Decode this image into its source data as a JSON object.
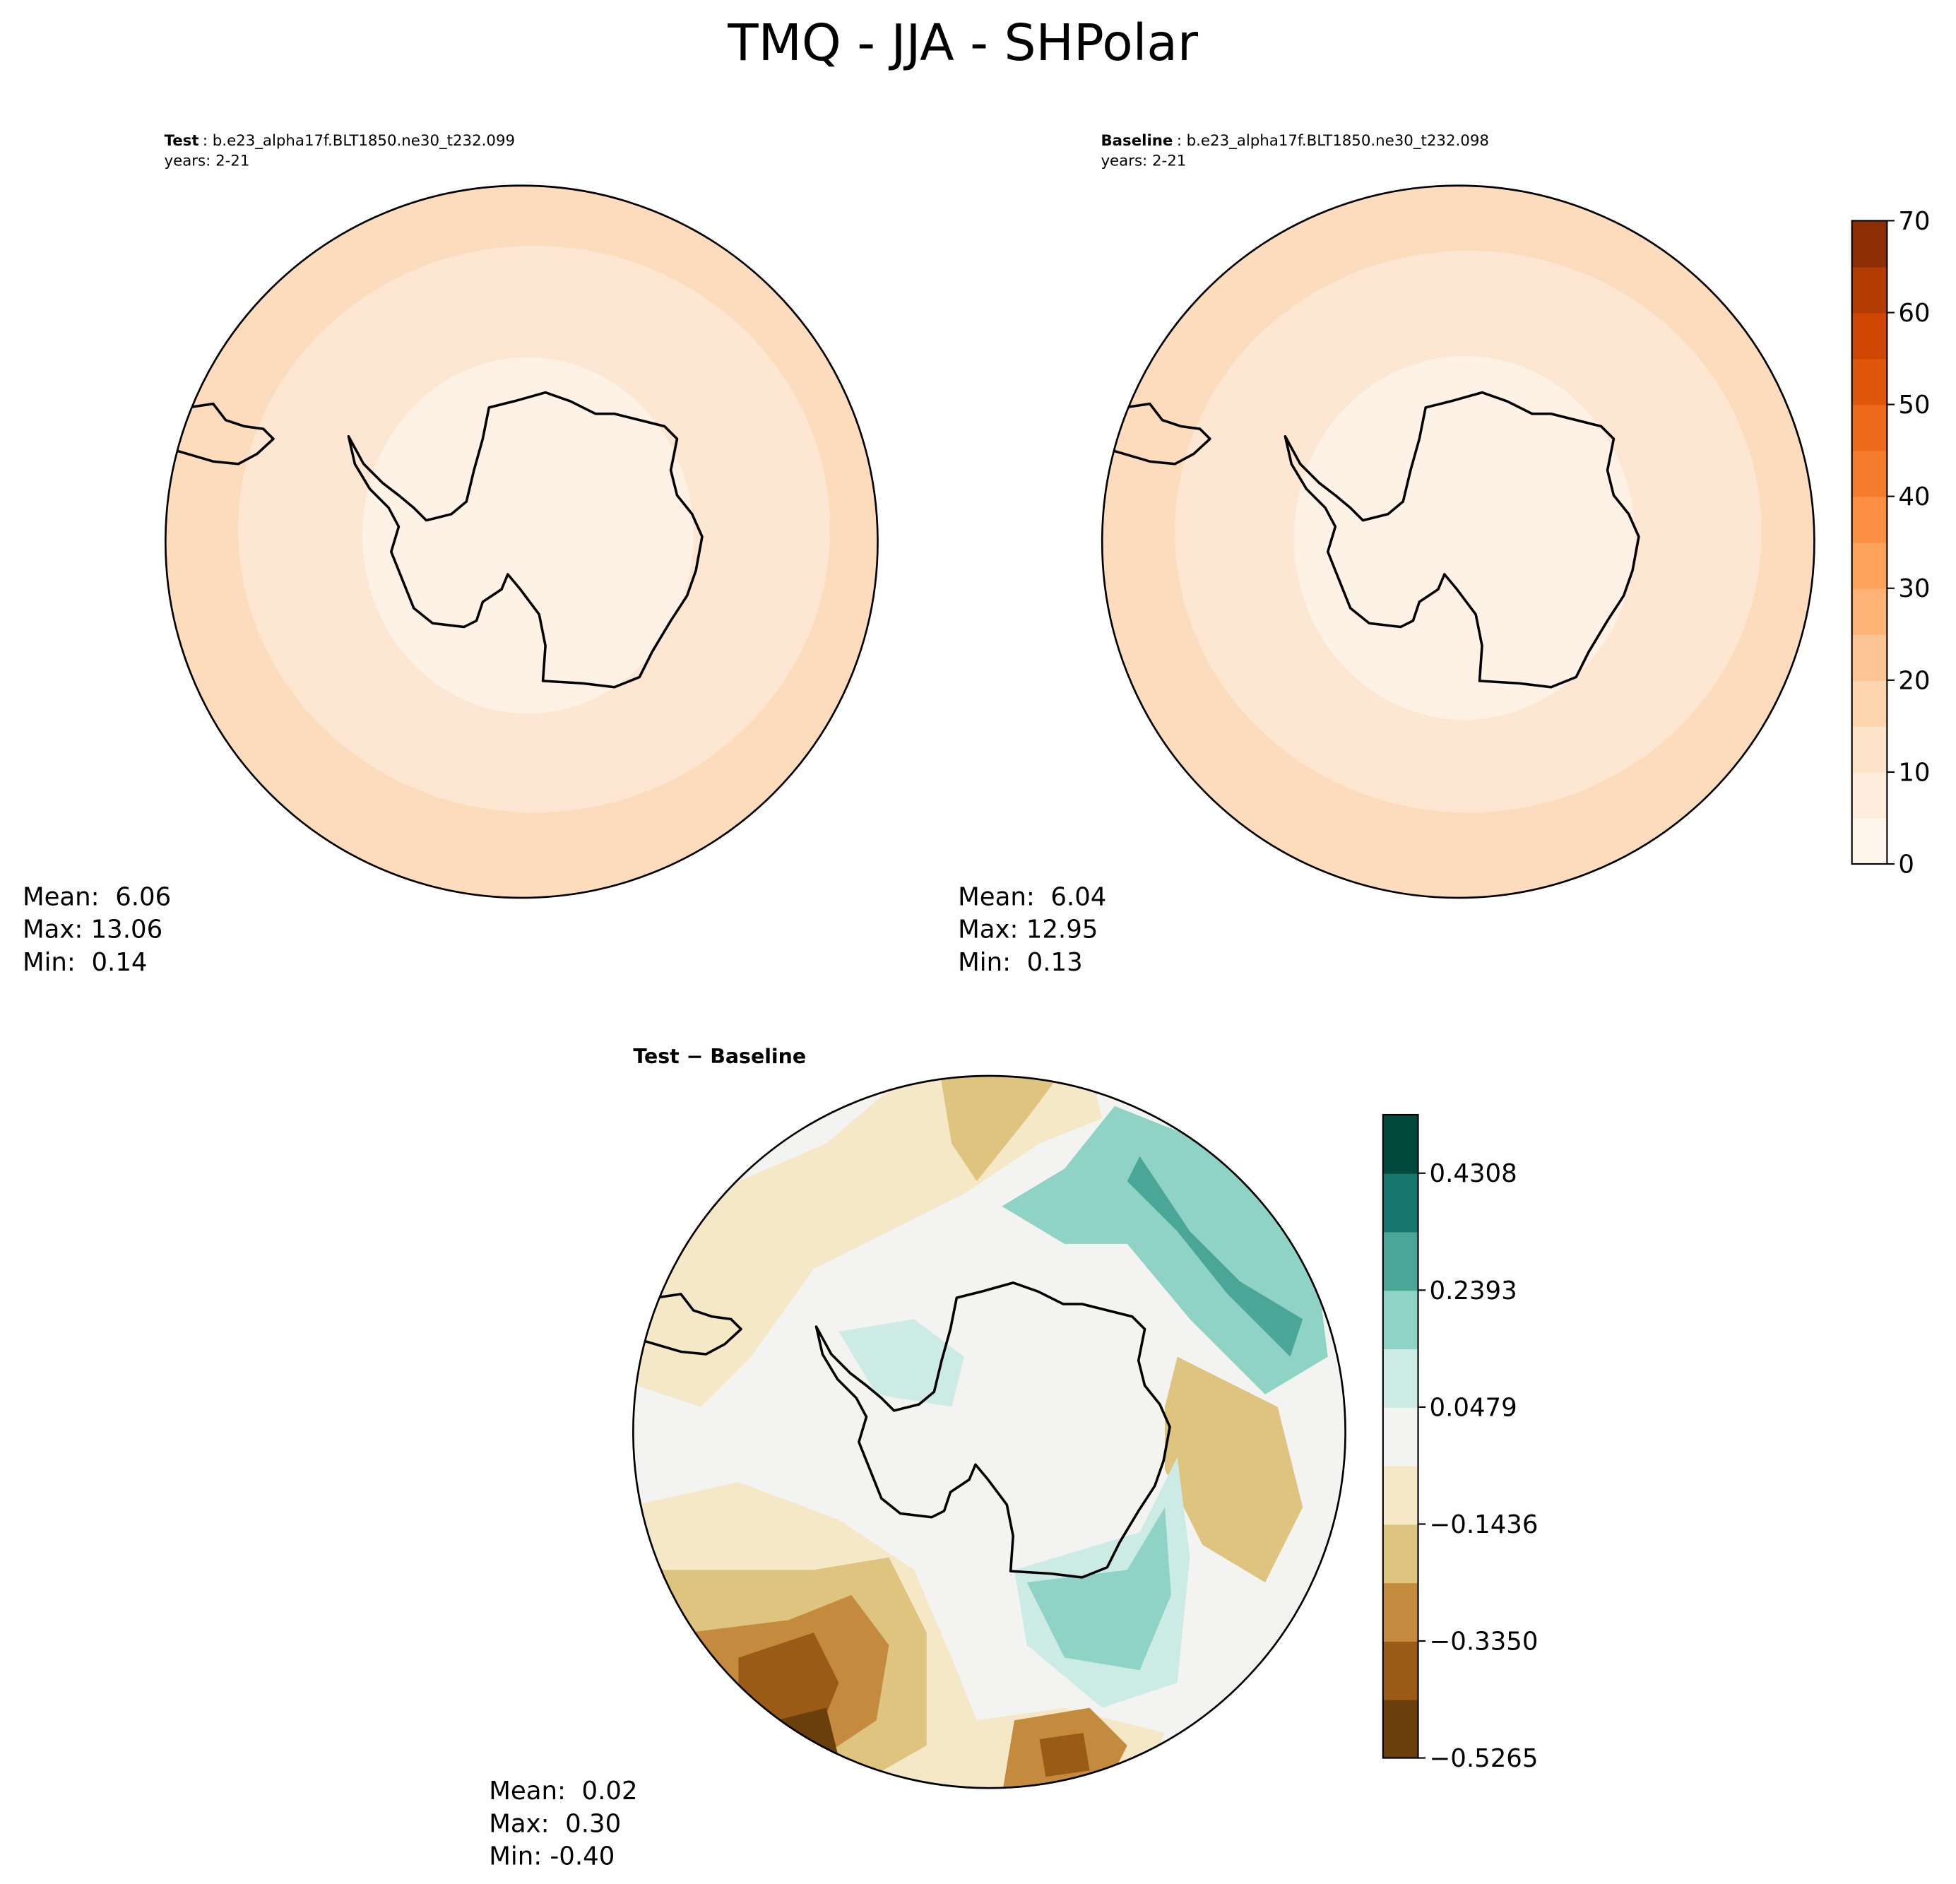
{
  "title": "TMQ - JJA - SHPolar",
  "chart_data": [
    {
      "type": "map",
      "title_bold": "Test",
      "title": ": b.e23_alpha17f.BLT1850.ne30_t232.099",
      "subtitle": "years: 2-21",
      "stats": [
        "Mean:  6.06",
        "Max: 13.06",
        "Min:  0.14"
      ]
    },
    {
      "type": "map",
      "title_bold": "Baseline",
      "title": ": b.e23_alpha17f.BLT1850.ne30_t232.098",
      "subtitle": "years: 2-21",
      "stats": [
        "Mean:  6.04",
        "Max: 12.95",
        "Min:  0.13"
      ]
    },
    {
      "type": "colorbar",
      "ylim": [
        0,
        70
      ],
      "yticks": [
        0,
        10,
        20,
        30,
        40,
        50,
        60,
        70
      ],
      "colors": [
        "#fff5eb",
        "#feeddc",
        "#fde3c8",
        "#fdd5ae",
        "#fdc593",
        "#fdb375",
        "#fda25b",
        "#fc8f43",
        "#f67c2d",
        "#ec6a1a",
        "#e0570c",
        "#cf4603",
        "#b33c03",
        "#8c2d04"
      ]
    },
    {
      "type": "map",
      "title": "Test − Baseline",
      "stats": [
        "Mean:  0.02",
        "Max:  0.30",
        "Min: -0.40"
      ]
    },
    {
      "type": "colorbar",
      "ylim": [
        -0.5265,
        0.5265
      ],
      "yticks": [
        {
          "value": -0.5265,
          "label": "−0.5265"
        },
        {
          "value": -0.335,
          "label": "−0.3350"
        },
        {
          "value": -0.1436,
          "label": "−0.1436"
        },
        0.0479,
        0.2393,
        0.4308
      ],
      "colors": [
        "#6b3f0c",
        "#9a5b17",
        "#c48b3e",
        "#dfc47f",
        "#f5e8c6",
        "#f3f3f1",
        "#cdebe5",
        "#8fd3c6",
        "#4aa697",
        "#15776f",
        "#01483d"
      ]
    }
  ]
}
